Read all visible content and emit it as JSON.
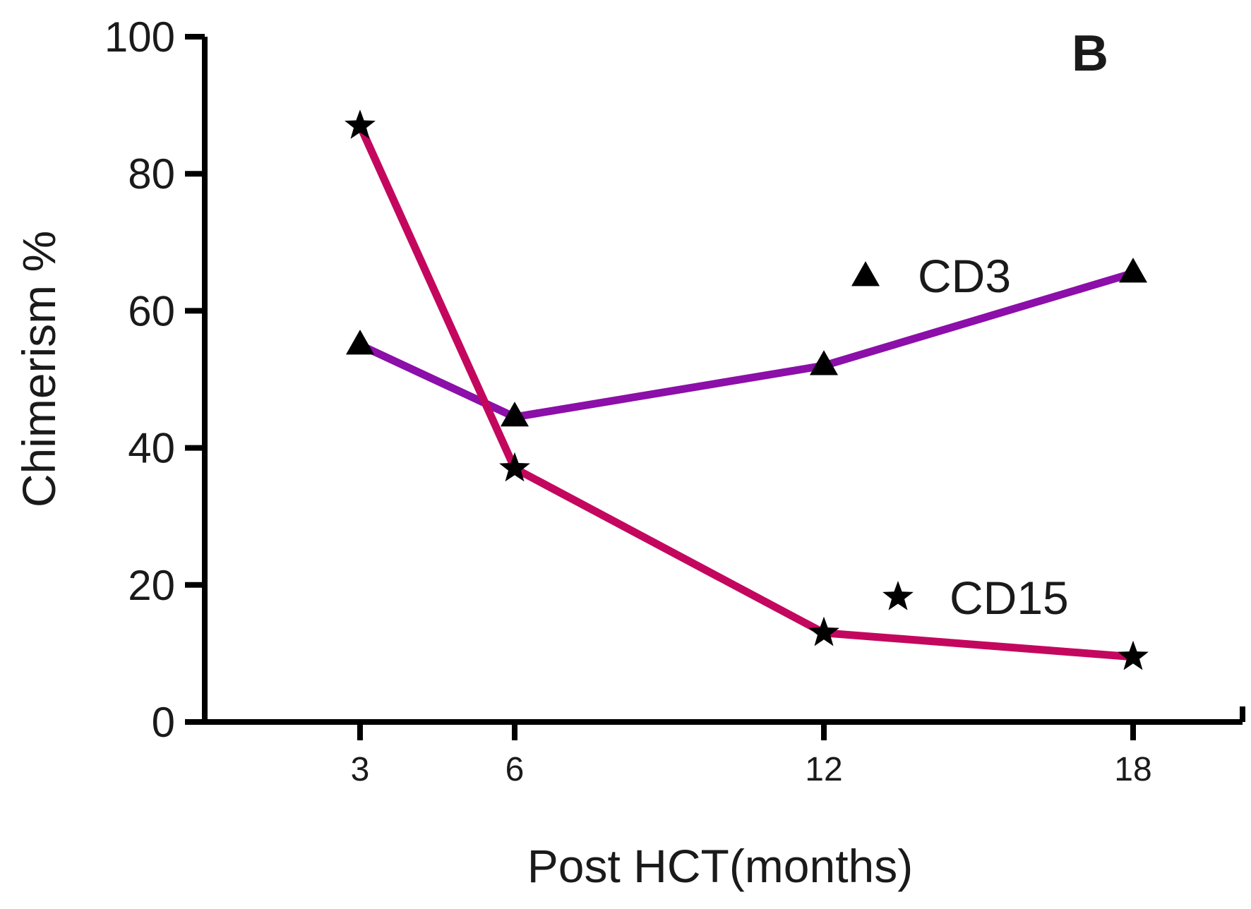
{
  "chart_data": {
    "type": "line",
    "panel_label": "B",
    "xlabel": "Post HCT(months)",
    "ylabel": "Chimerism %",
    "x": [
      3,
      6,
      12,
      18
    ],
    "x_tick_labels": [
      "3",
      "6",
      "12",
      "18"
    ],
    "xlim": [
      0,
      20
    ],
    "ylim": [
      0,
      100
    ],
    "y_ticks": [
      0,
      20,
      40,
      60,
      80,
      100
    ],
    "y_tick_labels": [
      "0",
      "20",
      "40",
      "60",
      "80",
      "100"
    ],
    "grid": false,
    "legend_position": "right",
    "series": [
      {
        "name": "CD3",
        "marker": "triangle",
        "color": "#8b0fa8",
        "values": [
          55,
          44.5,
          52,
          65.5
        ]
      },
      {
        "name": "CD15",
        "marker": "star",
        "color": "#c4075e",
        "values": [
          87,
          37,
          13,
          9.5
        ]
      }
    ]
  }
}
